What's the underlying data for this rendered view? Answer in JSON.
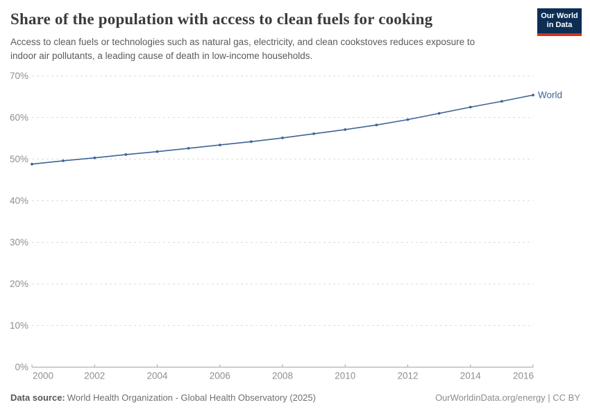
{
  "header": {
    "title": "Share of the population with access to clean fuels for cooking",
    "subtitle_lines": [
      "Access to clean fuels or technologies such as natural gas, electricity, and clean cookstoves reduces exposure to",
      "indoor air pollutants, a leading cause of death in low-income households."
    ],
    "logo": {
      "line1": "Our World",
      "line2": "in Data",
      "bg_color": "#0d2e54",
      "bar_color": "#d7301f"
    }
  },
  "chart_data": {
    "type": "line",
    "title": "Share of the population with access to clean fuels for cooking",
    "xlabel": "",
    "ylabel": "",
    "xlim": [
      2000,
      2016
    ],
    "ylim": [
      0,
      70
    ],
    "xticks": [
      2000,
      2002,
      2004,
      2006,
      2008,
      2010,
      2012,
      2014,
      2016
    ],
    "yticks": [
      0,
      10,
      20,
      30,
      40,
      50,
      60,
      70
    ],
    "ytick_suffix": "%",
    "grid": "horizontal-dashed",
    "grid_color": "#dcdcdc",
    "axis_color": "#a3a3a3",
    "tick_label_color": "#8f8f8f",
    "legend_position": "line-end-label",
    "series": [
      {
        "name": "World",
        "color": "#3e6396",
        "x": [
          2000,
          2001,
          2002,
          2003,
          2004,
          2005,
          2006,
          2007,
          2008,
          2009,
          2010,
          2011,
          2012,
          2013,
          2014,
          2015,
          2016
        ],
        "values": [
          48.8,
          49.6,
          50.3,
          51.1,
          51.8,
          52.6,
          53.4,
          54.2,
          55.1,
          56.1,
          57.1,
          58.2,
          59.5,
          61.0,
          62.5,
          63.9,
          65.4
        ]
      }
    ]
  },
  "footer": {
    "source_label": "Data source:",
    "source_text": "World Health Organization - Global Health Observatory (2025)",
    "credit": "OurWorldinData.org/energy | CC BY"
  }
}
